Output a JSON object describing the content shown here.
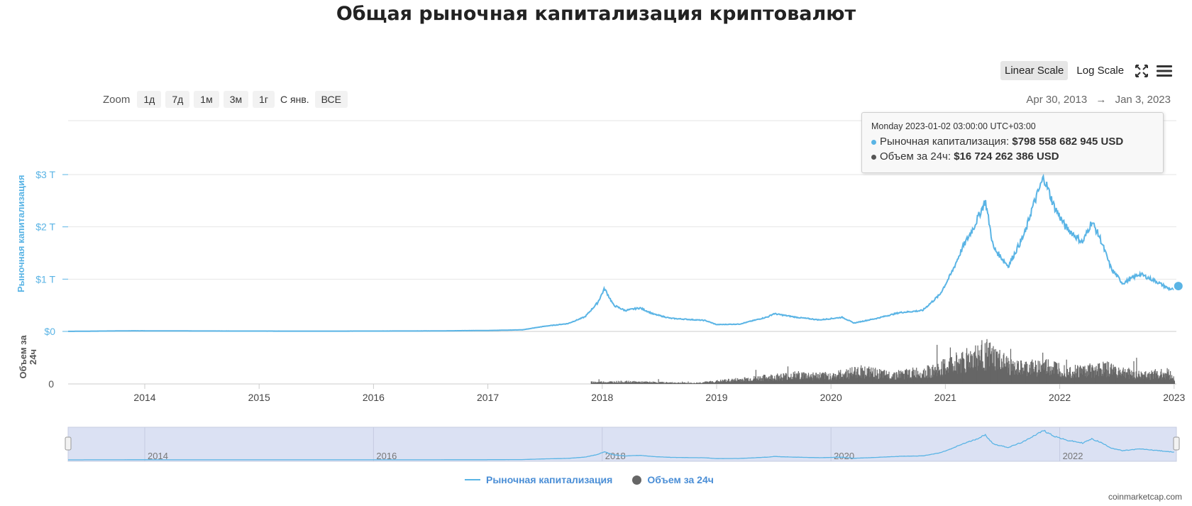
{
  "title": "Общая рыночная капитализация криптовалют",
  "zoom": {
    "label": "Zoom",
    "buttons": [
      "1д",
      "7д",
      "1м",
      "3м",
      "1г",
      "С янв.",
      "ВСЕ"
    ]
  },
  "scale": {
    "linear": "Linear Scale",
    "log": "Log Scale",
    "active": "linear"
  },
  "icons": {
    "fullscreen": "fullscreen-icon",
    "menu": "menu-icon"
  },
  "range": {
    "from": "Apr 30, 2013",
    "arrow": "→",
    "to": "Jan 3, 2023"
  },
  "tooltip": {
    "header": "Monday 2023-01-02 03:00:00 UTC+03:00",
    "cap_label": "Рыночная капитализация: ",
    "cap_value": "$798 558 682 945 USD",
    "vol_label": "Объем за 24ч: ",
    "vol_value": "$16 724 262 386 USD"
  },
  "legend": {
    "cap": "Рыночная капитализация",
    "vol": "Объем за 24ч"
  },
  "credit": "coinmarketcap.com",
  "colors": {
    "cap": "#5ab4e5",
    "vol": "#666666",
    "navigator_bg": "#dbe1f3"
  },
  "chart_data": {
    "type": "line",
    "title": "Общая рыночная капитализация криптовалют",
    "ylabel": "Рыночная капитализация",
    "ylabel2": "Объем за 24ч",
    "x_ticks": [
      "2014",
      "2015",
      "2016",
      "2017",
      "2018",
      "2019",
      "2020",
      "2021",
      "2022",
      "2023"
    ],
    "y_ticks": [
      "$0",
      "$1 T",
      "$2 T",
      "$3 T"
    ],
    "y2_ticks": [
      "0"
    ],
    "ylim": [
      0,
      4
    ],
    "xlim": [
      2013.33,
      2023.02
    ],
    "navigator_ticks": [
      "2014",
      "2016",
      "2018",
      "2020",
      "2022"
    ],
    "grid": true,
    "legend_position": "bottom-center",
    "series": [
      {
        "name": "Рыночная капитализация",
        "unit": "trillion USD",
        "points": [
          [
            2013.33,
            0.001
          ],
          [
            2013.9,
            0.012
          ],
          [
            2014.5,
            0.008
          ],
          [
            2015.5,
            0.005
          ],
          [
            2016.5,
            0.009
          ],
          [
            2017.0,
            0.018
          ],
          [
            2017.3,
            0.03
          ],
          [
            2017.5,
            0.1
          ],
          [
            2017.7,
            0.15
          ],
          [
            2017.85,
            0.28
          ],
          [
            2017.96,
            0.55
          ],
          [
            2018.02,
            0.82
          ],
          [
            2018.1,
            0.5
          ],
          [
            2018.2,
            0.4
          ],
          [
            2018.33,
            0.45
          ],
          [
            2018.45,
            0.33
          ],
          [
            2018.6,
            0.25
          ],
          [
            2018.9,
            0.21
          ],
          [
            2019.0,
            0.13
          ],
          [
            2019.2,
            0.14
          ],
          [
            2019.45,
            0.28
          ],
          [
            2019.5,
            0.34
          ],
          [
            2019.7,
            0.27
          ],
          [
            2019.9,
            0.22
          ],
          [
            2020.1,
            0.27
          ],
          [
            2020.2,
            0.16
          ],
          [
            2020.4,
            0.25
          ],
          [
            2020.6,
            0.36
          ],
          [
            2020.8,
            0.4
          ],
          [
            2020.95,
            0.7
          ],
          [
            2021.05,
            1.1
          ],
          [
            2021.15,
            1.6
          ],
          [
            2021.25,
            2.0
          ],
          [
            2021.35,
            2.5
          ],
          [
            2021.42,
            1.6
          ],
          [
            2021.55,
            1.25
          ],
          [
            2021.7,
            1.9
          ],
          [
            2021.75,
            2.3
          ],
          [
            2021.86,
            2.95
          ],
          [
            2021.95,
            2.4
          ],
          [
            2022.05,
            2.0
          ],
          [
            2022.2,
            1.7
          ],
          [
            2022.28,
            2.1
          ],
          [
            2022.35,
            1.8
          ],
          [
            2022.45,
            1.2
          ],
          [
            2022.55,
            0.92
          ],
          [
            2022.7,
            1.1
          ],
          [
            2022.85,
            0.95
          ],
          [
            2022.95,
            0.82
          ],
          [
            2023.0,
            0.8
          ]
        ]
      },
      {
        "name": "Объем за 24ч",
        "unit": "relative",
        "points": [
          [
            2017.9,
            0.04
          ],
          [
            2018.2,
            0.05
          ],
          [
            2018.8,
            0.02
          ],
          [
            2019.3,
            0.12
          ],
          [
            2019.7,
            0.2
          ],
          [
            2020.0,
            0.18
          ],
          [
            2020.25,
            0.3
          ],
          [
            2020.5,
            0.2
          ],
          [
            2020.9,
            0.3
          ],
          [
            2021.15,
            0.55
          ],
          [
            2021.35,
            0.7
          ],
          [
            2021.6,
            0.35
          ],
          [
            2021.9,
            0.4
          ],
          [
            2022.1,
            0.3
          ],
          [
            2022.4,
            0.35
          ],
          [
            2022.7,
            0.2
          ],
          [
            2022.95,
            0.25
          ],
          [
            2023.0,
            0.1
          ]
        ]
      }
    ]
  }
}
